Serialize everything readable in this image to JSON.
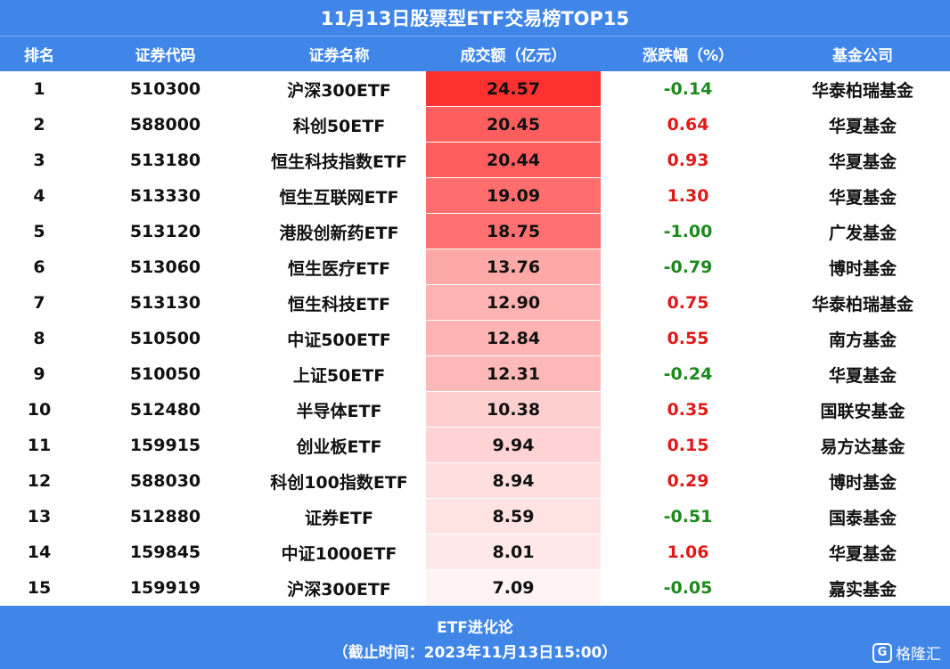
{
  "title": "11月13日股票型ETF交易榜TOP15",
  "headers": [
    "排名",
    "证券代码",
    "证券名称",
    "成交额（亿元）",
    "涨跌幅（%）",
    "基金公司"
  ],
  "colors": {
    "header_bg": "#3f86e8",
    "bar_max": "#ff3030",
    "positive": "#e01a1a",
    "negative": "#1c8a1c"
  },
  "chart_data": {
    "type": "table",
    "columns": [
      "排名",
      "证券代码",
      "证券名称",
      "成交额（亿元）",
      "涨跌幅（%）",
      "基金公司"
    ],
    "rows": [
      {
        "rank": "1",
        "code": "510300",
        "name": "沪深300ETF",
        "volume": "24.57",
        "change": "-0.14",
        "company": "华泰柏瑞基金"
      },
      {
        "rank": "2",
        "code": "588000",
        "name": "科创50ETF",
        "volume": "20.45",
        "change": "0.64",
        "company": "华夏基金"
      },
      {
        "rank": "3",
        "code": "513180",
        "name": "恒生科技指数ETF",
        "volume": "20.44",
        "change": "0.93",
        "company": "华夏基金"
      },
      {
        "rank": "4",
        "code": "513330",
        "name": "恒生互联网ETF",
        "volume": "19.09",
        "change": "1.30",
        "company": "华夏基金"
      },
      {
        "rank": "5",
        "code": "513120",
        "name": "港股创新药ETF",
        "volume": "18.75",
        "change": "-1.00",
        "company": "广发基金"
      },
      {
        "rank": "6",
        "code": "513060",
        "name": "恒生医疗ETF",
        "volume": "13.76",
        "change": "-0.79",
        "company": "博时基金"
      },
      {
        "rank": "7",
        "code": "513130",
        "name": "恒生科技ETF",
        "volume": "12.90",
        "change": "0.75",
        "company": "华泰柏瑞基金"
      },
      {
        "rank": "8",
        "code": "510500",
        "name": "中证500ETF",
        "volume": "12.84",
        "change": "0.55",
        "company": "南方基金"
      },
      {
        "rank": "9",
        "code": "510050",
        "name": "上证50ETF",
        "volume": "12.31",
        "change": "-0.24",
        "company": "华夏基金"
      },
      {
        "rank": "10",
        "code": "512480",
        "name": "半导体ETF",
        "volume": "10.38",
        "change": "0.35",
        "company": "国联安基金"
      },
      {
        "rank": "11",
        "code": "159915",
        "name": "创业板ETF",
        "volume": "9.94",
        "change": "0.15",
        "company": "易方达基金"
      },
      {
        "rank": "12",
        "code": "588030",
        "name": "科创100指数ETF",
        "volume": "8.94",
        "change": "0.29",
        "company": "博时基金"
      },
      {
        "rank": "13",
        "code": "512880",
        "name": "证券ETF",
        "volume": "8.59",
        "change": "-0.51",
        "company": "国泰基金"
      },
      {
        "rank": "14",
        "code": "159845",
        "name": "中证1000ETF",
        "volume": "8.01",
        "change": "1.06",
        "company": "华夏基金"
      },
      {
        "rank": "15",
        "code": "159919",
        "name": "沪深300ETF",
        "volume": "7.09",
        "change": "-0.05",
        "company": "嘉实基金"
      }
    ]
  },
  "footer": {
    "source": "ETF进化论",
    "cutoff": "（截止时间：2023年11月13日15:00）"
  },
  "logo": {
    "icon": "g-logo-icon",
    "text": "格隆汇",
    "mark": "G"
  }
}
